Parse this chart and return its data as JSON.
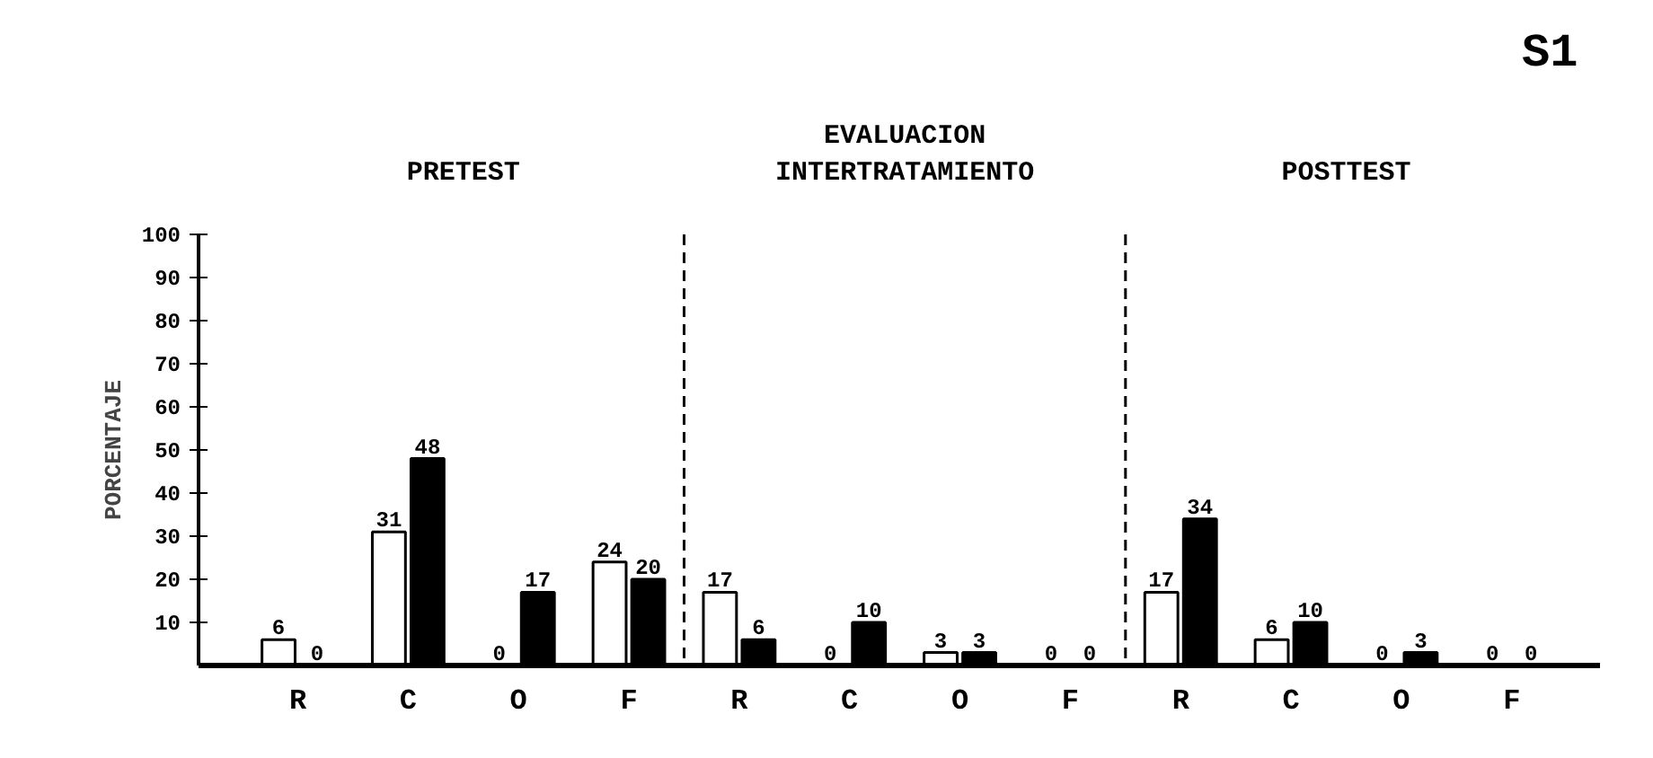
{
  "chart_data": {
    "type": "bar",
    "categories": [
      "R",
      "C",
      "O",
      "F",
      "R",
      "C",
      "O",
      "F",
      "R",
      "C",
      "O",
      "F"
    ],
    "series": [
      {
        "color": "#ffffff",
        "values": [
          6,
          31,
          0,
          24,
          17,
          0,
          3,
          0,
          17,
          6,
          0,
          0
        ]
      },
      {
        "color": "#000000",
        "values": [
          0,
          48,
          17,
          20,
          6,
          10,
          3,
          0,
          34,
          10,
          3,
          0
        ]
      }
    ],
    "ylabel": "PORCENTAJE",
    "ylim": [
      0,
      100
    ],
    "yticks": [
      10,
      20,
      30,
      40,
      50,
      60,
      70,
      80,
      90,
      100
    ],
    "annotations": [
      "PRETEST",
      "EVALUACION\nINTERTRATAMIENTO",
      "POSTTEST",
      "S1"
    ],
    "data_labels": true
  }
}
